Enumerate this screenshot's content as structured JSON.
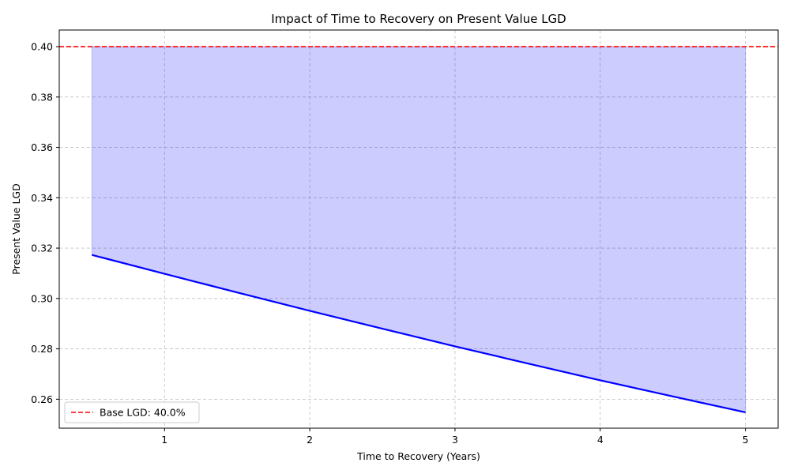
{
  "chart_data": {
    "type": "area",
    "title": "Impact of Time to Recovery on Present Value LGD",
    "xlabel": "Time to Recovery (Years)",
    "ylabel": "Present Value LGD",
    "xlim": [
      0.275,
      5.225
    ],
    "ylim": [
      0.2485,
      0.4066
    ],
    "xticks": [
      1,
      2,
      3,
      4,
      5
    ],
    "yticks": [
      0.26,
      0.28,
      0.3,
      0.32,
      0.34,
      0.36,
      0.38,
      0.4
    ],
    "grid": true,
    "legend_position": "lower-left",
    "series": [
      {
        "kind": "line",
        "color": "#0000ff",
        "x": [
          0.5,
          1.0,
          1.5,
          2.0,
          2.5,
          3.0,
          3.5,
          4.0,
          4.5,
          5.0
        ],
        "y": [
          0.3173,
          0.3098,
          0.3024,
          0.2951,
          0.288,
          0.281,
          0.2742,
          0.2675,
          0.2611,
          0.2548
        ]
      },
      {
        "kind": "fill_between",
        "color": "#0000ff",
        "alpha": 0.2,
        "upper": 0.4
      },
      {
        "kind": "hline",
        "name": "Base LGD: 40.0%",
        "color": "#ff0000",
        "dashed": true,
        "y": 0.4
      }
    ]
  }
}
